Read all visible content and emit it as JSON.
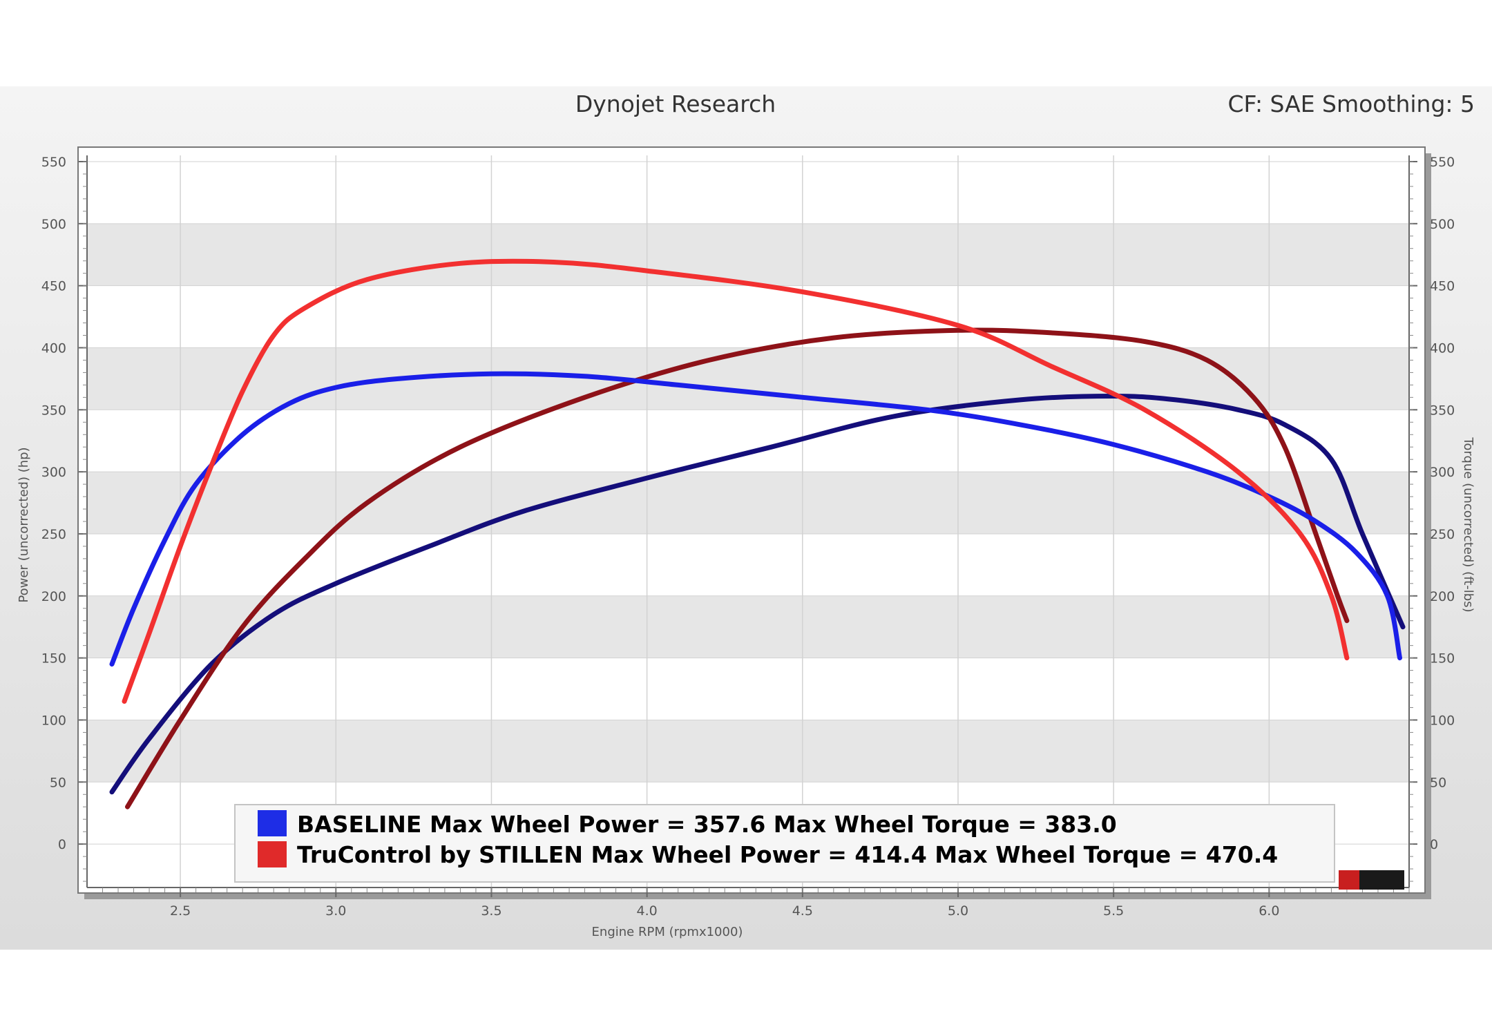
{
  "header": {
    "title": "Dynojet Research",
    "settings": "CF: SAE Smoothing: 5"
  },
  "chart_data": {
    "type": "line",
    "xlabel": "Engine RPM (rpmx1000)",
    "ylabel_left": "Power (uncorrected) (hp)",
    "ylabel_right": "Torque (uncorrected) (ft-lbs)",
    "xlim": [
      2.2,
      6.45
    ],
    "ylim": [
      -35,
      555
    ],
    "x_ticks": [
      2.5,
      3.0,
      3.5,
      4.0,
      4.5,
      5.0,
      5.5,
      6.0
    ],
    "x_tick_labels": [
      "2.5",
      "3.0",
      "3.5",
      "4.0",
      "4.5",
      "5.0",
      "5.5",
      "6.0"
    ],
    "y_ticks": [
      0,
      50,
      100,
      150,
      200,
      250,
      300,
      350,
      400,
      450,
      500,
      550
    ],
    "y_tick_labels": [
      "0",
      "50",
      "100",
      "150",
      "200",
      "250",
      "300",
      "350",
      "400",
      "450",
      "500",
      "550"
    ],
    "grid": true,
    "legend_position": "bottom",
    "legend": [
      {
        "label": "BASELINE Max Wheel Power = 357.6 Max Wheel Torque = 383.0",
        "color": "#1e2de6"
      },
      {
        "label": "TruControl by STILLEN Max Wheel Power = 414.4 Max Wheel Torque = 470.4",
        "color": "#e02a2a"
      }
    ],
    "series": [
      {
        "color": "#1a1fe8",
        "x": [
          2.28,
          2.35,
          2.45,
          2.55,
          2.7,
          2.85,
          3.0,
          3.2,
          3.5,
          3.8,
          4.1,
          4.5,
          4.9,
          5.2,
          5.5,
          5.8,
          6.0,
          6.15,
          6.28,
          6.38,
          6.42
        ],
        "y": [
          145,
          190,
          245,
          290,
          330,
          355,
          368,
          375,
          379,
          377,
          370,
          360,
          350,
          338,
          322,
          300,
          280,
          260,
          235,
          200,
          150
        ]
      },
      {
        "color": "#f23030",
        "x": [
          2.32,
          2.4,
          2.5,
          2.6,
          2.7,
          2.8,
          2.9,
          3.1,
          3.4,
          3.7,
          4.0,
          4.5,
          5.0,
          5.3,
          5.6,
          5.9,
          6.1,
          6.2,
          6.25
        ],
        "y": [
          115,
          170,
          240,
          305,
          365,
          410,
          432,
          455,
          468,
          469,
          462,
          445,
          418,
          385,
          350,
          300,
          250,
          200,
          150
        ]
      },
      {
        "color": "#140e7a",
        "x": [
          2.28,
          2.4,
          2.6,
          2.8,
          3.0,
          3.3,
          3.6,
          4.0,
          4.4,
          4.8,
          5.2,
          5.5,
          5.7,
          5.9,
          6.05,
          6.2,
          6.3,
          6.43
        ],
        "y": [
          42,
          85,
          145,
          185,
          210,
          240,
          268,
          295,
          320,
          345,
          358,
          361,
          358,
          350,
          338,
          310,
          250,
          175
        ]
      },
      {
        "color": "#8e1218",
        "x": [
          2.33,
          2.5,
          2.7,
          2.9,
          3.1,
          3.4,
          3.8,
          4.2,
          4.6,
          5.0,
          5.3,
          5.6,
          5.8,
          5.95,
          6.05,
          6.15,
          6.22,
          6.25
        ],
        "y": [
          30,
          100,
          175,
          230,
          275,
          320,
          360,
          390,
          408,
          414,
          412,
          405,
          390,
          360,
          320,
          250,
          200,
          180
        ]
      }
    ]
  }
}
